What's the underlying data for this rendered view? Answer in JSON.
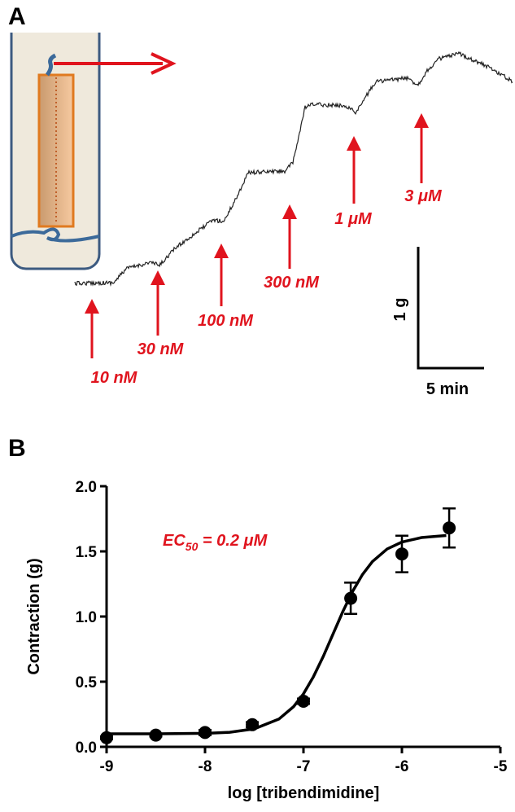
{
  "panel_a": {
    "label": "A",
    "concentrations": [
      "10 nM",
      "30 nM",
      "100 nM",
      "300 nM",
      "1 μM",
      "3 μM"
    ],
    "scale_y": "1 g",
    "scale_x": "5 min"
  },
  "chart_data": {
    "type": "scatter",
    "panel_label": "B",
    "annotation": {
      "prefix": "EC",
      "subscript": "50",
      "suffix": " = 0.2 μM"
    },
    "x_label": "log [tribendimidine]",
    "y_label": "Contraction (g)",
    "x": [
      -9,
      -8.5,
      -8,
      -7.52,
      -7,
      -6.52,
      -6,
      -5.52
    ],
    "values": [
      0.07,
      0.09,
      0.11,
      0.17,
      0.35,
      1.14,
      1.48,
      1.68
    ],
    "errors": [
      0.01,
      0.01,
      0.02,
      0.02,
      0.02,
      0.12,
      0.14,
      0.15
    ],
    "fit_x": [
      -9,
      -8.5,
      -8,
      -7.75,
      -7.5,
      -7.25,
      -7.1,
      -7,
      -6.9,
      -6.8,
      -6.7,
      -6.6,
      -6.5,
      -6.4,
      -6.3,
      -6.15,
      -6,
      -5.8,
      -5.55
    ],
    "fit_y": [
      0.1,
      0.1,
      0.104,
      0.112,
      0.138,
      0.213,
      0.309,
      0.407,
      0.536,
      0.692,
      0.865,
      1.038,
      1.194,
      1.323,
      1.421,
      1.518,
      1.571,
      1.606,
      1.622
    ],
    "color": "#000000",
    "annotation_color": "#e0141e",
    "xlim": [
      -9,
      -5
    ],
    "ylim": [
      0,
      2
    ],
    "xticks": [
      -9,
      -8,
      -7,
      -6,
      -5
    ],
    "yticks": [
      {
        "value": 0,
        "label": "0.0"
      },
      {
        "value": 0.5,
        "label": "0.5"
      },
      {
        "value": 1,
        "label": "1.0"
      },
      {
        "value": 1.5,
        "label": "1.5"
      },
      {
        "value": 2,
        "label": "2.0"
      }
    ]
  }
}
